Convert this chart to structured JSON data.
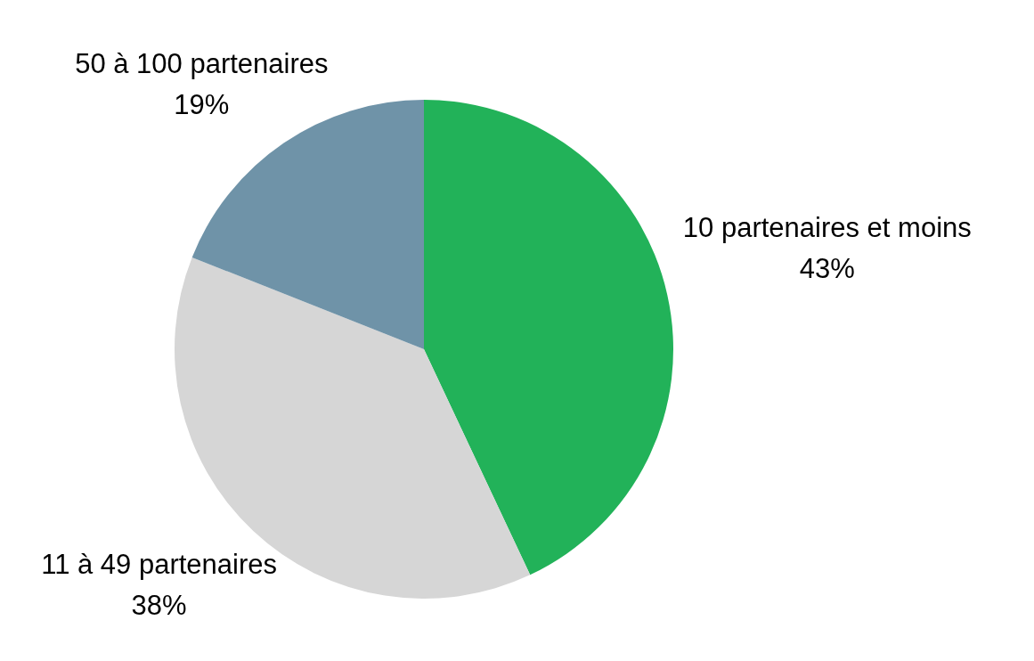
{
  "chart_data": {
    "type": "pie",
    "categories": [
      "10 partenaires et moins",
      "11 à 49 partenaires",
      "50 à 100 partenaires"
    ],
    "values": [
      43,
      38,
      19
    ],
    "colors": [
      "#22b259",
      "#d6d6d6",
      "#6f93a8"
    ],
    "value_labels": [
      "43%",
      "38%",
      "19%"
    ]
  }
}
